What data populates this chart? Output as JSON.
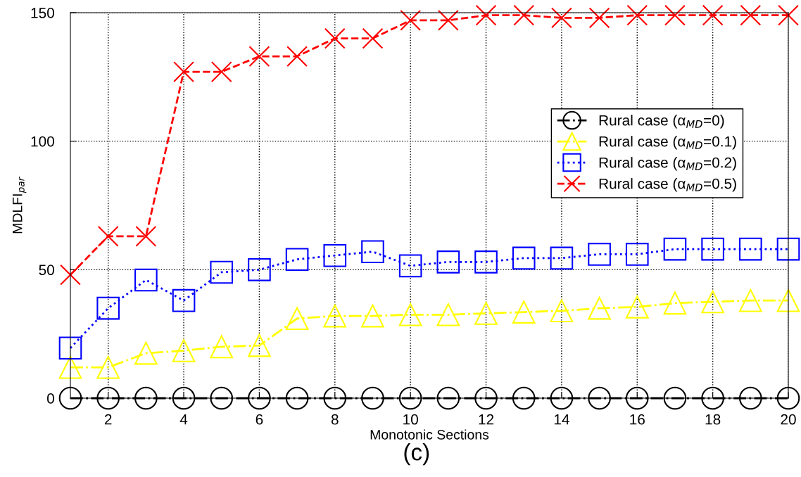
{
  "chart_data": {
    "type": "line",
    "xlabel": "Monotonic Sections",
    "ylabel": "MDLFI$_{par}$",
    "annotations": [
      "(c)"
    ],
    "x": [
      1,
      2,
      3,
      4,
      5,
      6,
      7,
      8,
      9,
      10,
      11,
      12,
      13,
      14,
      15,
      16,
      17,
      18,
      19,
      20
    ],
    "xlim": [
      1,
      20
    ],
    "xticks": [
      2,
      4,
      6,
      8,
      10,
      12,
      14,
      16,
      18,
      20
    ],
    "ylim": [
      0,
      150
    ],
    "yticks": [
      0,
      50,
      100,
      150
    ],
    "grid": true,
    "legend": "top right",
    "series": [
      {
        "name": "Rural case (α$_{MD}$=0)",
        "color": "#000000",
        "marker": "circle",
        "line_style": "dashdot",
        "values": [
          0,
          0,
          0,
          0,
          0,
          0,
          0,
          0,
          0,
          0,
          0,
          0,
          0,
          0,
          0,
          0,
          0,
          0,
          0,
          0
        ]
      },
      {
        "name": "Rural case (α$_{MD}$=0.1)",
        "color": "#ffff00",
        "marker": "triangle",
        "line_style": "dashdot",
        "values": [
          12,
          12,
          17.5,
          18.5,
          20,
          20.5,
          31,
          32,
          32,
          32.5,
          32.5,
          33,
          33.5,
          34,
          35,
          35.5,
          37,
          37.5,
          38,
          38
        ]
      },
      {
        "name": "Rural case (α$_{MD}$=0.2)",
        "color": "#0000ff",
        "marker": "square",
        "line_style": "dotted",
        "values": [
          19.5,
          35,
          46,
          38,
          49,
          50,
          54,
          55.5,
          57,
          51.5,
          53,
          53,
          54.5,
          54.5,
          56,
          56,
          58,
          58,
          58,
          58
        ]
      },
      {
        "name": "Rural case (α$_{MD}$=0.5)",
        "color": "#ff0000",
        "marker": "cross",
        "line_style": "dashed",
        "values": [
          48,
          63,
          63,
          127,
          127,
          133,
          133,
          140,
          140,
          147,
          147,
          149,
          149,
          148,
          148,
          149,
          149,
          149,
          149,
          149
        ]
      }
    ]
  }
}
